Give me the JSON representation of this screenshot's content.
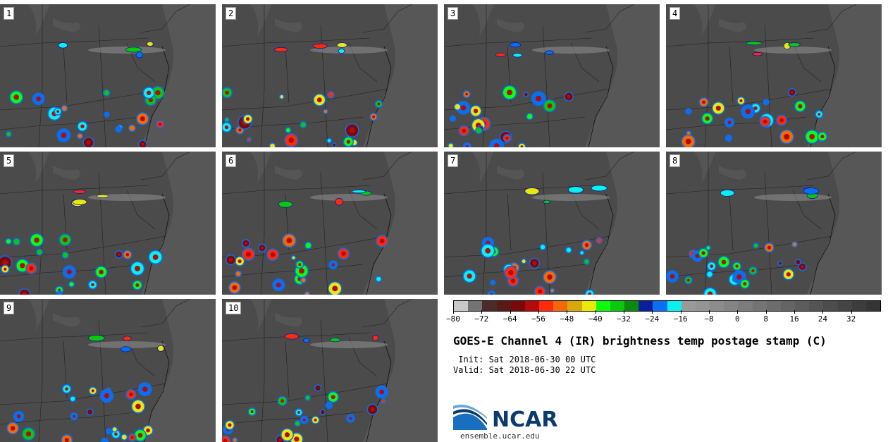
{
  "panels": [
    {
      "label": "1"
    },
    {
      "label": "2"
    },
    {
      "label": "3"
    },
    {
      "label": "4"
    },
    {
      "label": "5"
    },
    {
      "label": "6"
    },
    {
      "label": "7"
    },
    {
      "label": "8"
    },
    {
      "label": "9"
    },
    {
      "label": "10"
    }
  ],
  "colorbar": {
    "colors": [
      "#c8c8c8",
      "#737373",
      "#4a2a2a",
      "#5a1a1a",
      "#7a0a0a",
      "#b40a0a",
      "#ff2a0a",
      "#f06a0a",
      "#d8a80a",
      "#e8e80a",
      "#0aff0a",
      "#0ac80a",
      "#0a8c0a",
      "#0a1e9a",
      "#0a6ef0",
      "#0af0f0",
      "#9a9a9a",
      "#949494",
      "#8c8c8c",
      "#848484",
      "#7c7c7c",
      "#747474",
      "#6c6c6c",
      "#646464",
      "#5c5c5c",
      "#545454",
      "#4c4c4c",
      "#444444",
      "#3c3c3c",
      "#343434"
    ],
    "min": -80,
    "max": 40,
    "ticks": [
      "−80",
      "−72",
      "−64",
      "−56",
      "−48",
      "−40",
      "−32",
      "−24",
      "−16",
      "−8",
      "0",
      "8",
      "16",
      "24",
      "32"
    ]
  },
  "title": "GOES-E Channel 4 (IR) brightness temp postage stamp (C)",
  "init": " Init: Sat 2018-06-30 00 UTC",
  "valid": "Valid: Sat 2018-06-30 22 UTC",
  "logo": {
    "text": "NCAR",
    "url": "ensemble.ucar.edu"
  }
}
